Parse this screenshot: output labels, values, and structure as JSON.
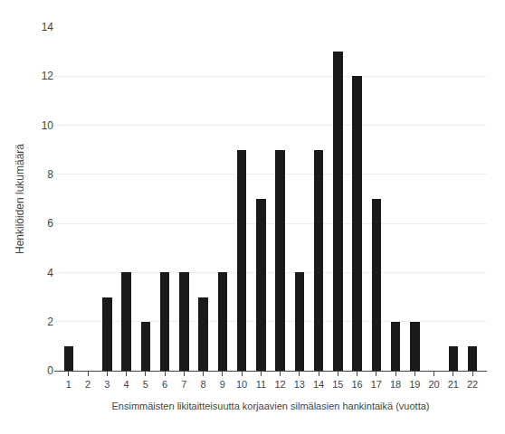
{
  "chart_data": {
    "type": "bar",
    "x": [
      1,
      2,
      3,
      4,
      5,
      6,
      7,
      8,
      9,
      10,
      11,
      12,
      13,
      14,
      15,
      16,
      17,
      18,
      19,
      20,
      21,
      22
    ],
    "values": [
      1,
      0,
      3,
      4,
      2,
      4,
      4,
      3,
      4,
      9,
      7,
      9,
      4,
      9,
      13,
      12,
      7,
      2,
      2,
      0,
      1,
      1
    ],
    "color": "#1a1a1a",
    "xlabel": "Ensimmäisten likitaitteisuutta korjaavien silmälasien hankintaikä (vuotta)",
    "ylabel": "Henkilöiden lukumäärä",
    "xlim": [
      0.25,
      22.75
    ],
    "xticks": [
      1,
      2,
      3,
      4,
      5,
      6,
      7,
      8,
      9,
      10,
      11,
      12,
      13,
      14,
      15,
      16,
      17,
      18,
      19,
      20,
      21,
      22
    ],
    "ylim": [
      0,
      14
    ],
    "yticks": [
      0,
      2,
      4,
      6,
      8,
      10,
      12,
      14
    ],
    "grid": true
  }
}
